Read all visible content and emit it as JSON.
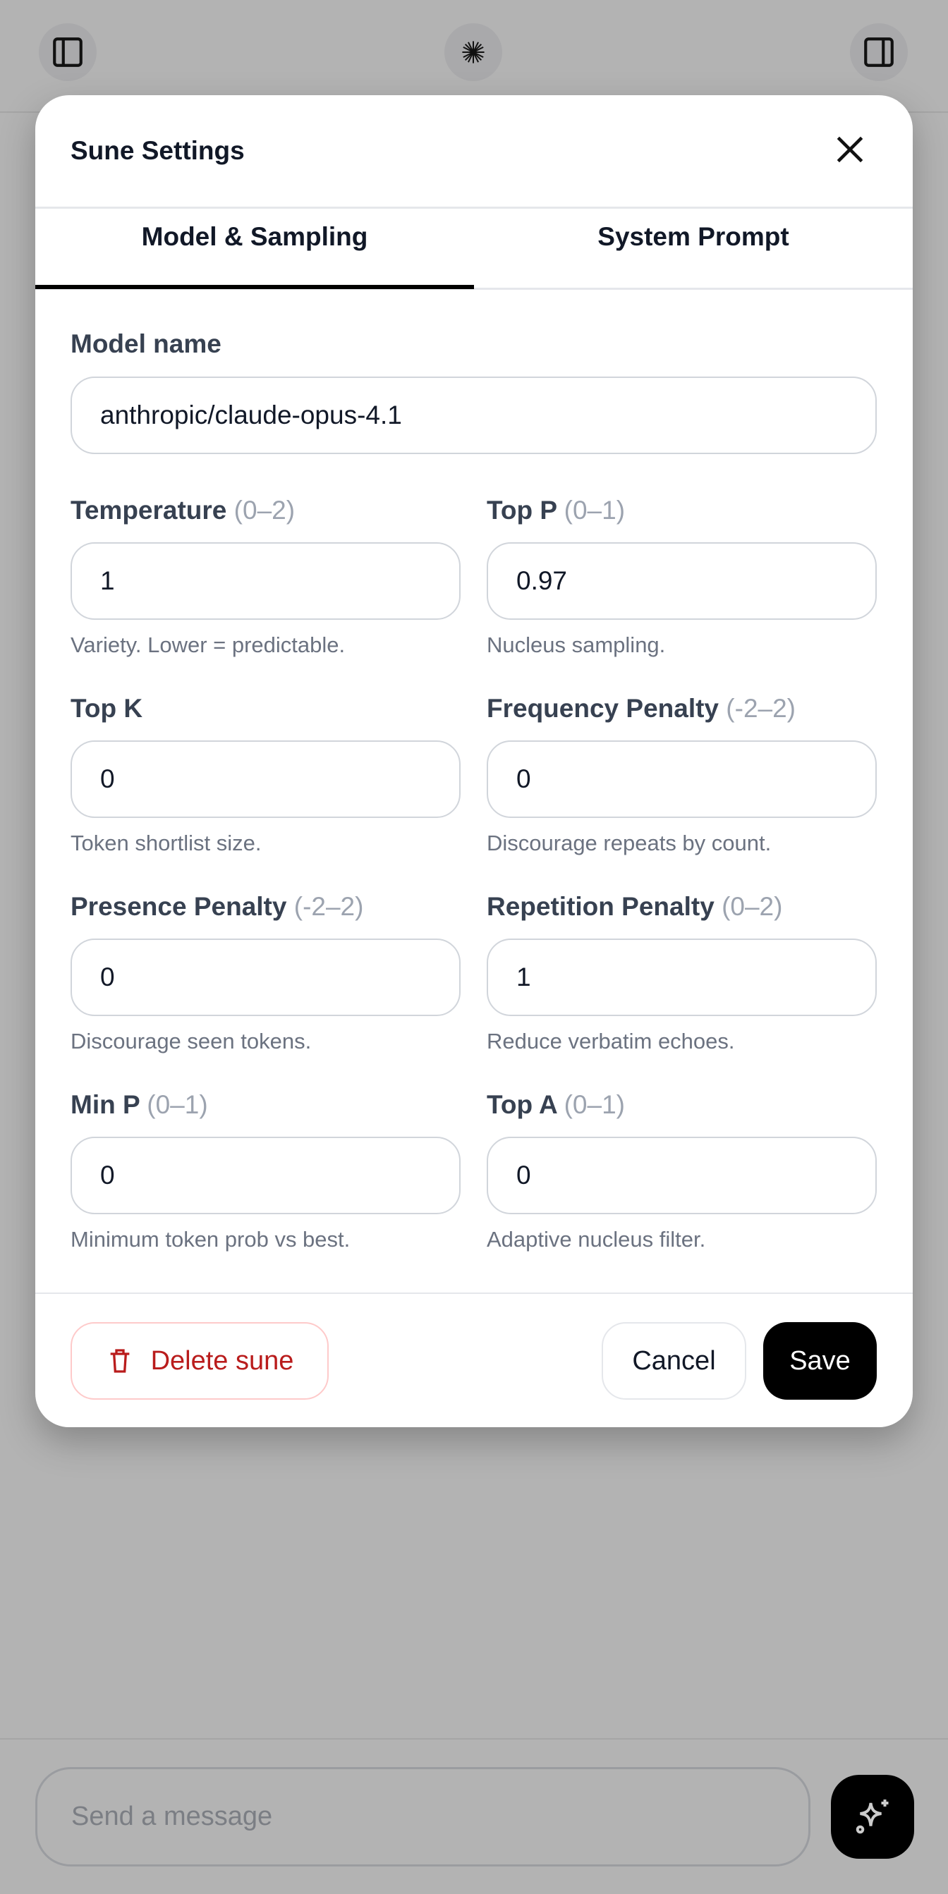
{
  "topbar": {
    "left_icon": "sidebar-left-icon",
    "center_icon": "starburst-logo-icon",
    "right_icon": "sidebar-right-icon"
  },
  "modal": {
    "title": "Sune Settings",
    "tabs": [
      {
        "label": "Model & Sampling",
        "active": true
      },
      {
        "label": "System Prompt",
        "active": false
      }
    ],
    "model": {
      "label": "Model name",
      "value": "anthropic/claude-opus-4.1"
    },
    "fields": [
      {
        "label": "Temperature",
        "range": "(0–2)",
        "value": "1",
        "hint": "Variety. Lower = predictable."
      },
      {
        "label": "Top P",
        "range": "(0–1)",
        "value": "0.97",
        "hint": "Nucleus sampling."
      },
      {
        "label": "Top K",
        "range": "",
        "value": "0",
        "hint": "Token shortlist size."
      },
      {
        "label": "Frequency Penalty",
        "range": "(-2–2)",
        "value": "0",
        "hint": "Discourage repeats by count."
      },
      {
        "label": "Presence Penalty",
        "range": "(-2–2)",
        "value": "0",
        "hint": "Discourage seen tokens."
      },
      {
        "label": "Repetition Penalty",
        "range": "(0–2)",
        "value": "1",
        "hint": "Reduce verbatim echoes."
      },
      {
        "label": "Min P",
        "range": "(0–1)",
        "value": "0",
        "hint": "Minimum token prob vs best."
      },
      {
        "label": "Top A",
        "range": "(0–1)",
        "value": "0",
        "hint": "Adaptive nucleus filter."
      }
    ],
    "footer": {
      "delete_label": "Delete sune",
      "cancel_label": "Cancel",
      "save_label": "Save"
    }
  },
  "composer": {
    "placeholder": "Send a message"
  },
  "colors": {
    "danger": "#b91c1c",
    "primary": "#000000",
    "overlay": "#b3b3b3"
  }
}
